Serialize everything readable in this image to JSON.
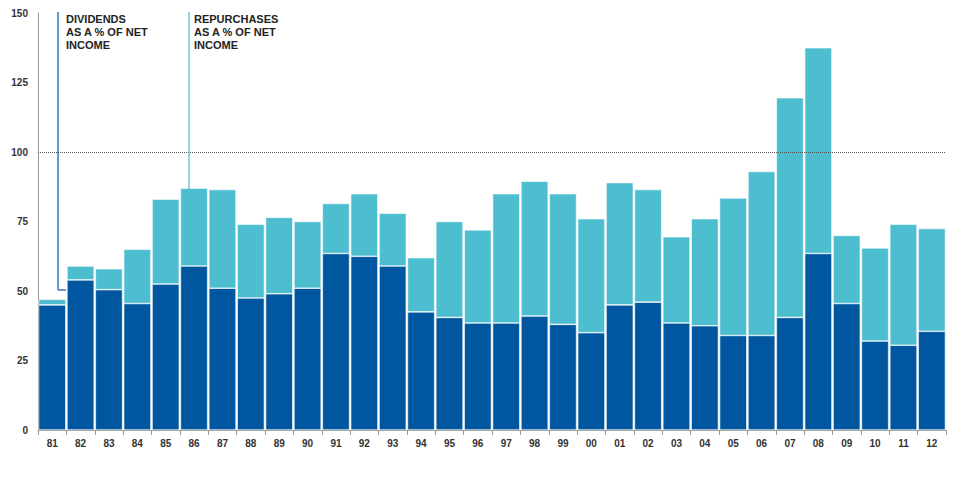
{
  "chart_data": {
    "type": "bar",
    "stacked": true,
    "grid": false,
    "categories": [
      "81",
      "82",
      "83",
      "84",
      "85",
      "86",
      "87",
      "88",
      "89",
      "90",
      "91",
      "92",
      "93",
      "94",
      "95",
      "96",
      "97",
      "98",
      "99",
      "00",
      "01",
      "02",
      "03",
      "04",
      "05",
      "06",
      "07",
      "08",
      "09",
      "10",
      "11",
      "12"
    ],
    "series": [
      {
        "name": "DIVIDENDS\nAS A % OF NET\nINCOME",
        "color": "#0057a0",
        "values": [
          45,
          54,
          50.5,
          45.5,
          52.5,
          59,
          51,
          47.5,
          49,
          51,
          63.5,
          62.5,
          59,
          42.5,
          40.5,
          38.5,
          38.5,
          41,
          38,
          35,
          45,
          46,
          38.5,
          37.5,
          34,
          34,
          40.5,
          63.5,
          45.5,
          32,
          30.5,
          35.5
        ]
      },
      {
        "name": "REPURCHASES\nAS A % OF NET\nINCOME",
        "color": "#4dbdd0",
        "values": [
          2,
          5,
          7.5,
          19.5,
          30.5,
          28,
          35.5,
          26.5,
          27.5,
          24,
          18,
          22.5,
          19,
          19.5,
          34.5,
          33.5,
          46.5,
          48.5,
          47,
          41,
          44,
          40.5,
          31,
          38.5,
          49.5,
          59,
          79,
          74,
          24.5,
          33.5,
          43.5,
          37
        ]
      }
    ],
    "ylim": [
      0,
      150
    ],
    "yticks": [
      0,
      25,
      50,
      75,
      100,
      125,
      150
    ],
    "reference_lines": [
      100
    ]
  }
}
